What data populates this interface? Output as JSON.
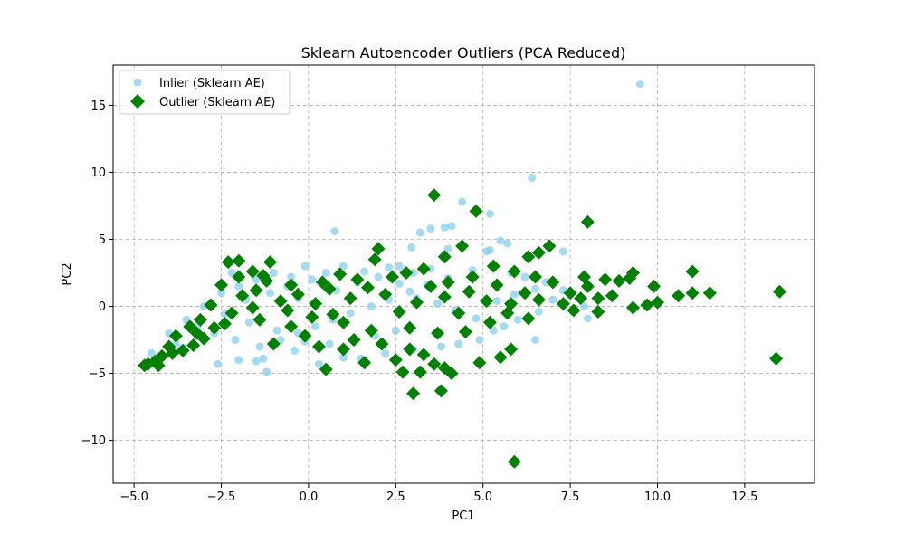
{
  "chart_data": {
    "type": "scatter",
    "title": "Sklearn Autoencoder Outliers (PCA Reduced)",
    "xlabel": "PC1",
    "ylabel": "PC2",
    "xlim": [
      -5.6,
      14.5
    ],
    "ylim": [
      -13.2,
      18.0
    ],
    "xticks": [
      -5.0,
      -2.5,
      0.0,
      2.5,
      5.0,
      7.5,
      10.0,
      12.5
    ],
    "xtick_labels": [
      "−5.0",
      "−2.5",
      "0.0",
      "2.5",
      "5.0",
      "7.5",
      "10.0",
      "12.5"
    ],
    "yticks": [
      -10,
      -5,
      0,
      5,
      10,
      15
    ],
    "ytick_labels": [
      "−10",
      "−5",
      "0",
      "5",
      "10",
      "15"
    ],
    "grid": true,
    "legend_position": "top-left",
    "series": [
      {
        "name": "Inlier (Sklearn AE)",
        "marker": "circle",
        "color": "#87CEEB",
        "points": [
          [
            9.5,
            16.6
          ],
          [
            6.4,
            9.6
          ],
          [
            4.4,
            7.8
          ],
          [
            5.2,
            6.9
          ],
          [
            3.9,
            5.9
          ],
          [
            4.1,
            6.0
          ],
          [
            3.2,
            5.5
          ],
          [
            3.5,
            5.8
          ],
          [
            0.75,
            5.6
          ],
          [
            2.95,
            4.4
          ],
          [
            5.5,
            4.9
          ],
          [
            5.1,
            4.1
          ],
          [
            5.2,
            4.2
          ],
          [
            5.7,
            4.7
          ],
          [
            7.3,
            4.1
          ],
          [
            7.9,
            0.0
          ],
          [
            8.0,
            -0.9
          ],
          [
            6.5,
            -2.5
          ],
          [
            2.6,
            3.0
          ],
          [
            3.0,
            2.5
          ],
          [
            3.5,
            2.8
          ],
          [
            1.0,
            3.0
          ],
          [
            0.5,
            2.5
          ],
          [
            -0.1,
            3.0
          ],
          [
            -0.5,
            2.2
          ],
          [
            -1.0,
            2.5
          ],
          [
            -1.5,
            2.0
          ],
          [
            -2.0,
            1.5
          ],
          [
            -2.5,
            1.0
          ],
          [
            -2.2,
            2.5
          ],
          [
            -3.0,
            0.0
          ],
          [
            -3.5,
            -1.0
          ],
          [
            -4.0,
            -2.0
          ],
          [
            -4.5,
            -3.5
          ],
          [
            -4.2,
            -3.8
          ],
          [
            -2.6,
            -4.3
          ],
          [
            -2.0,
            -4.0
          ],
          [
            -1.5,
            -4.1
          ],
          [
            -1.2,
            -4.9
          ],
          [
            -1.3,
            -3.9
          ],
          [
            -0.4,
            -3.3
          ],
          [
            0.3,
            -4.3
          ],
          [
            1.0,
            -3.8
          ],
          [
            1.5,
            -3.9
          ],
          [
            2.2,
            -3.5
          ],
          [
            3.0,
            -3.2
          ],
          [
            3.8,
            -3.0
          ],
          [
            4.3,
            -2.8
          ],
          [
            4.9,
            -2.5
          ],
          [
            5.3,
            -1.8
          ],
          [
            5.6,
            -1.5
          ],
          [
            6.0,
            -1.0
          ],
          [
            6.6,
            -0.4
          ],
          [
            7.0,
            0.5
          ],
          [
            7.3,
            1.2
          ],
          [
            6.8,
            1.8
          ],
          [
            6.2,
            2.2
          ],
          [
            5.8,
            2.5
          ],
          [
            4.7,
            2.7
          ],
          [
            4.0,
            2.1
          ],
          [
            3.4,
            1.6
          ],
          [
            2.9,
            1.1
          ],
          [
            2.3,
            0.5
          ],
          [
            1.8,
            0.0
          ],
          [
            1.2,
            -0.5
          ],
          [
            0.7,
            -1.0
          ],
          [
            0.2,
            -1.5
          ],
          [
            -0.3,
            -2.0
          ],
          [
            -0.8,
            -2.5
          ],
          [
            -1.4,
            -3.0
          ],
          [
            -2.1,
            -2.5
          ],
          [
            -2.7,
            -2.0
          ],
          [
            -3.2,
            -1.5
          ],
          [
            -3.8,
            -2.8
          ],
          [
            -4.4,
            -4.0
          ],
          [
            -1.8,
            0.5
          ],
          [
            -1.1,
            1.0
          ],
          [
            -0.6,
            1.5
          ],
          [
            0.1,
            2.0
          ],
          [
            0.8,
            1.2
          ],
          [
            1.4,
            1.8
          ],
          [
            2.0,
            2.2
          ],
          [
            2.6,
            1.7
          ],
          [
            3.1,
            0.6
          ],
          [
            3.7,
            0.2
          ],
          [
            4.2,
            -0.3
          ],
          [
            4.8,
            -0.9
          ],
          [
            5.4,
            0.4
          ],
          [
            5.9,
            0.9
          ],
          [
            6.5,
            1.3
          ],
          [
            2.5,
            -1.8
          ],
          [
            1.9,
            -2.2
          ],
          [
            1.3,
            -2.6
          ],
          [
            0.6,
            -2.8
          ],
          [
            -0.1,
            -2.6
          ],
          [
            -0.9,
            -1.8
          ],
          [
            -1.7,
            -1.2
          ],
          [
            -2.4,
            -0.6
          ],
          [
            -3.1,
            -2.2
          ],
          [
            -3.6,
            -3.1
          ],
          [
            4.0,
            4.3
          ],
          [
            2.3,
            2.9
          ],
          [
            1.6,
            2.6
          ],
          [
            -0.3,
            0.6
          ]
        ]
      },
      {
        "name": "Outlier (Sklearn AE)",
        "marker": "diamond",
        "color": "#008000",
        "points": [
          [
            13.5,
            1.1
          ],
          [
            13.4,
            -3.9
          ],
          [
            11.5,
            1.0
          ],
          [
            11.0,
            2.6
          ],
          [
            11.0,
            1.0
          ],
          [
            10.6,
            0.8
          ],
          [
            10.0,
            0.3
          ],
          [
            9.9,
            1.5
          ],
          [
            9.7,
            0.1
          ],
          [
            9.3,
            2.5
          ],
          [
            9.2,
            2.1
          ],
          [
            9.3,
            -0.1
          ],
          [
            8.9,
            1.9
          ],
          [
            8.7,
            0.8
          ],
          [
            8.5,
            2.0
          ],
          [
            8.3,
            0.6
          ],
          [
            8.0,
            1.5
          ],
          [
            7.9,
            2.2
          ],
          [
            8.0,
            6.3
          ],
          [
            7.5,
            1.0
          ],
          [
            7.8,
            0.6
          ],
          [
            7.6,
            -0.3
          ],
          [
            8.3,
            -0.4
          ],
          [
            6.9,
            4.5
          ],
          [
            6.6,
            4.0
          ],
          [
            6.3,
            3.7
          ],
          [
            5.9,
            -11.6
          ],
          [
            5.8,
            -3.2
          ],
          [
            5.5,
            -3.8
          ],
          [
            4.9,
            -4.2
          ],
          [
            4.8,
            7.1
          ],
          [
            4.4,
            4.5
          ],
          [
            3.9,
            3.7
          ],
          [
            3.6,
            8.3
          ],
          [
            3.8,
            -6.3
          ],
          [
            3.6,
            -4.3
          ],
          [
            3.9,
            -4.6
          ],
          [
            4.1,
            -5.0
          ],
          [
            3.2,
            -4.9
          ],
          [
            3.0,
            -6.5
          ],
          [
            2.7,
            -4.9
          ],
          [
            3.3,
            -3.6
          ],
          [
            2.9,
            -3.2
          ],
          [
            2.5,
            -4.0
          ],
          [
            2.8,
            2.5
          ],
          [
            2.0,
            4.3
          ],
          [
            1.9,
            3.5
          ],
          [
            1.6,
            -4.2
          ],
          [
            1.0,
            -3.2
          ],
          [
            0.9,
            2.4
          ],
          [
            0.5,
            -4.7
          ],
          [
            0.3,
            -3.0
          ],
          [
            0.6,
            1.3
          ],
          [
            -0.1,
            -2.2
          ],
          [
            -0.5,
            -1.5
          ],
          [
            -1.0,
            -2.8
          ],
          [
            -1.1,
            3.3
          ],
          [
            -1.3,
            2.3
          ],
          [
            -1.4,
            -1.0
          ],
          [
            -2.0,
            3.4
          ],
          [
            -2.3,
            3.3
          ],
          [
            -1.6,
            2.6
          ],
          [
            -2.5,
            1.6
          ],
          [
            -2.8,
            0.1
          ],
          [
            -3.0,
            -2.4
          ],
          [
            -3.3,
            -2.9
          ],
          [
            -3.6,
            -3.3
          ],
          [
            -3.8,
            -2.2
          ],
          [
            -4.0,
            -3.0
          ],
          [
            -4.2,
            -3.7
          ],
          [
            -4.4,
            -4.1
          ],
          [
            -4.6,
            -4.3
          ],
          [
            -4.7,
            -4.4
          ],
          [
            -4.3,
            -4.4
          ],
          [
            -3.9,
            -3.5
          ],
          [
            -3.4,
            -1.5
          ],
          [
            -3.1,
            -1.0
          ],
          [
            -2.7,
            -1.6
          ],
          [
            -2.2,
            -0.5
          ],
          [
            -1.9,
            0.8
          ],
          [
            -1.5,
            1.2
          ],
          [
            -0.8,
            0.4
          ],
          [
            -0.3,
            0.9
          ],
          [
            0.2,
            0.2
          ],
          [
            0.7,
            -0.6
          ],
          [
            1.2,
            0.6
          ],
          [
            1.7,
            1.4
          ],
          [
            2.2,
            0.9
          ],
          [
            2.6,
            -0.4
          ],
          [
            3.1,
            0.3
          ],
          [
            3.5,
            1.5
          ],
          [
            3.9,
            0.7
          ],
          [
            4.3,
            -0.5
          ],
          [
            4.6,
            1.1
          ],
          [
            5.1,
            0.4
          ],
          [
            5.4,
            1.6
          ],
          [
            5.8,
            0.2
          ],
          [
            6.2,
            1.0
          ],
          [
            6.6,
            0.5
          ],
          [
            7.0,
            1.8
          ],
          [
            7.3,
            0.2
          ],
          [
            4.7,
            2.2
          ],
          [
            5.3,
            3.0
          ],
          [
            5.9,
            2.6
          ],
          [
            6.5,
            2.2
          ],
          [
            3.3,
            2.8
          ],
          [
            2.4,
            2.2
          ],
          [
            1.4,
            2.0
          ],
          [
            0.4,
            1.8
          ],
          [
            -0.5,
            1.6
          ],
          [
            1.0,
            -1.2
          ],
          [
            1.8,
            -1.8
          ],
          [
            2.9,
            -1.6
          ],
          [
            3.7,
            -2.0
          ],
          [
            4.5,
            -1.9
          ],
          [
            5.2,
            -1.2
          ],
          [
            5.7,
            -0.5
          ],
          [
            6.3,
            -0.9
          ],
          [
            2.1,
            -2.8
          ],
          [
            1.3,
            -2.5
          ],
          [
            0.1,
            -0.8
          ],
          [
            -0.6,
            -0.3
          ],
          [
            -1.6,
            -0.1
          ],
          [
            -2.4,
            -1.3
          ],
          [
            -3.2,
            -2.0
          ],
          [
            -2.0,
            2.2
          ],
          [
            -1.2,
            1.9
          ],
          [
            4.0,
            1.8
          ]
        ]
      }
    ]
  }
}
